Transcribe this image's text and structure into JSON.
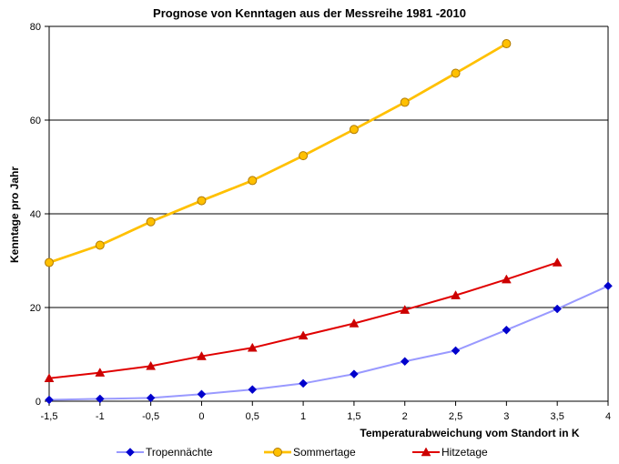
{
  "chart_data": {
    "type": "line",
    "title": "Prognose von Kenntagen aus der Messreihe 1981 -2010",
    "xlabel": "Temperaturabweichung vom Standort in K",
    "ylabel": "Kenntage pro Jahr",
    "categories": [
      "-1,5",
      "-1",
      "-0,5",
      "0",
      "0,5",
      "1",
      "1,5",
      "2",
      "2,5",
      "3",
      "3,5",
      "4"
    ],
    "ylim": [
      0,
      80
    ],
    "yticks": [
      0,
      20,
      40,
      60,
      80
    ],
    "grid": true,
    "legend": "bottom",
    "series": [
      {
        "name": "Tropennächte",
        "color": "#9999ff",
        "marker": "diamond",
        "marker_color": "#0000cc",
        "values": [
          0.3,
          0.5,
          0.7,
          1.5,
          2.5,
          3.8,
          5.8,
          8.5,
          10.8,
          15.2,
          19.7,
          24.6
        ]
      },
      {
        "name": "Sommertage",
        "color": "#ffc000",
        "marker": "circle",
        "marker_color": "#ffc000",
        "values": [
          29.6,
          33.3,
          38.3,
          42.8,
          47.1,
          52.4,
          58.0,
          63.8,
          70.0,
          76.3,
          null,
          null
        ]
      },
      {
        "name": "Hitzetage",
        "color": "#e00000",
        "marker": "triangle",
        "marker_color": "#cc0000",
        "values": [
          4.9,
          6.1,
          7.5,
          9.6,
          11.4,
          14.0,
          16.6,
          19.5,
          22.6,
          26.0,
          29.6,
          null
        ]
      }
    ]
  }
}
